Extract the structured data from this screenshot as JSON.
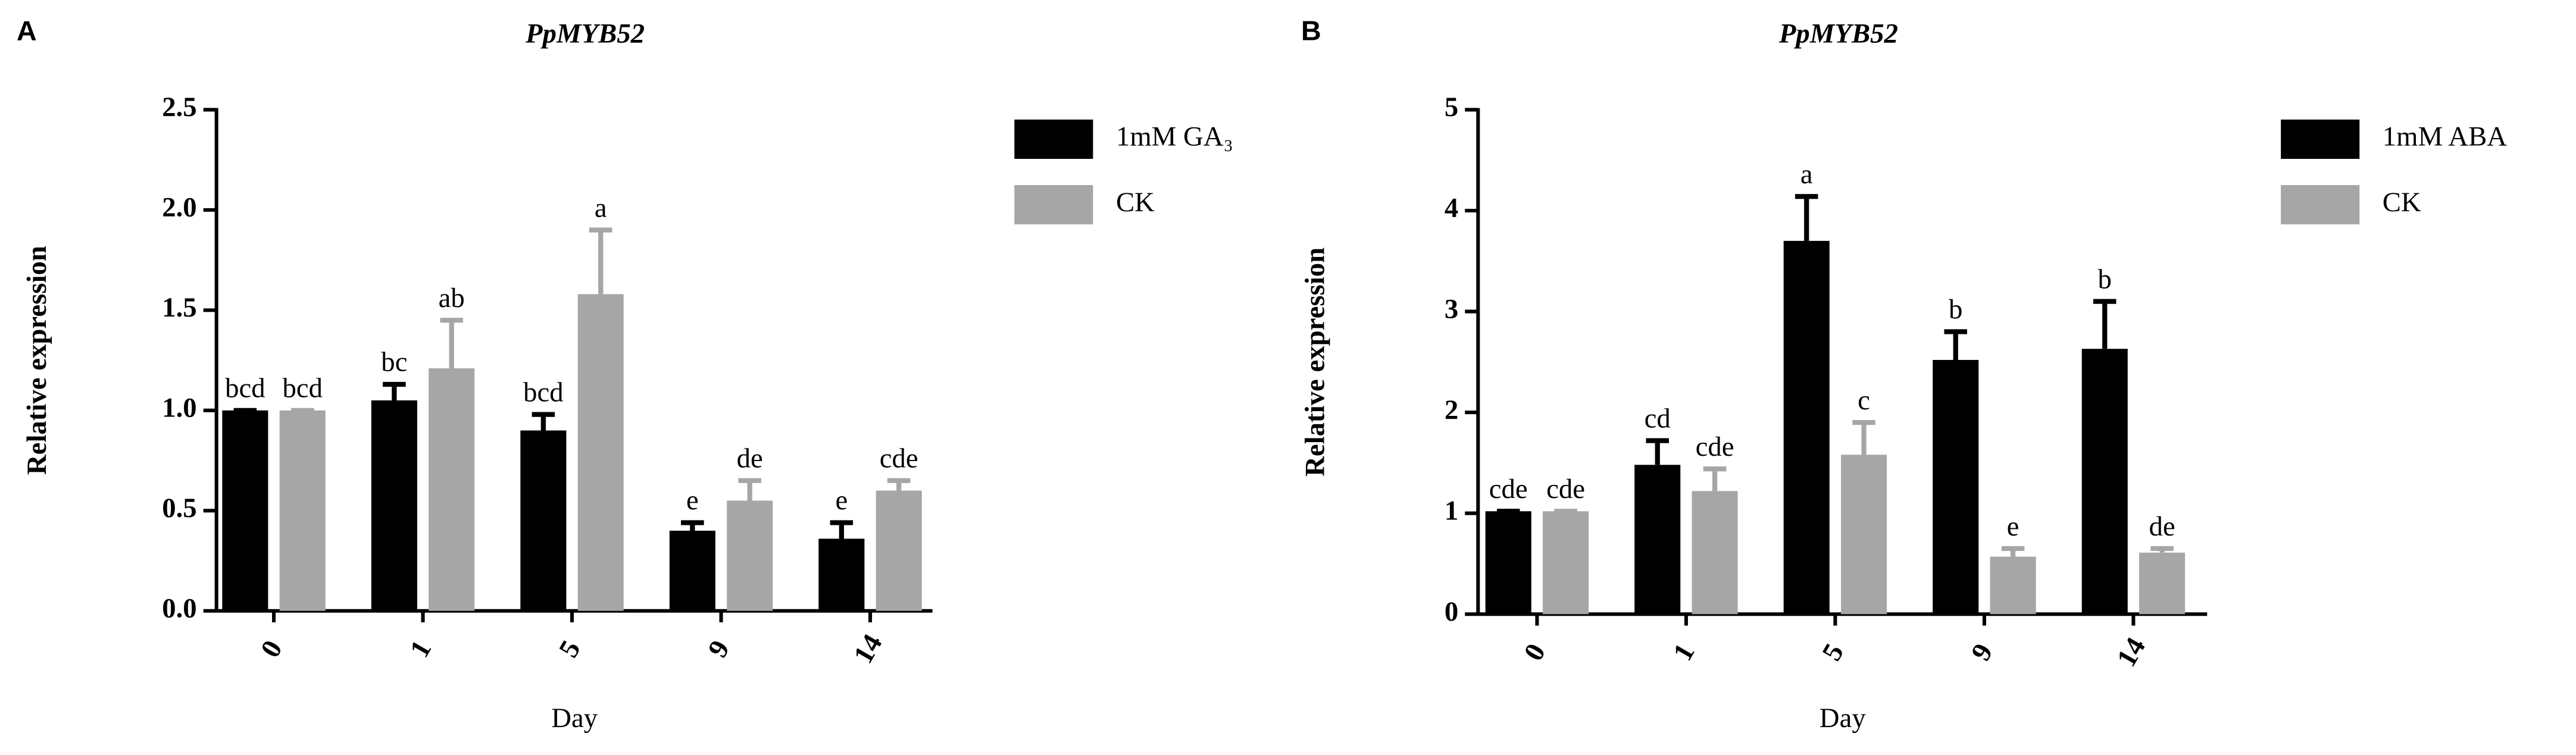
{
  "chart_data": [
    {
      "type": "bar",
      "panel": "A",
      "title": "PpMYB52",
      "x_label": "Day",
      "y_label": "Relative expression",
      "categories": [
        "0",
        "1",
        "5",
        "9",
        "14"
      ],
      "series": [
        {
          "name": "1mM GA₃",
          "color": "#000000",
          "values": [
            1.0,
            1.05,
            0.9,
            0.4,
            0.36
          ],
          "errors": [
            0,
            0.08,
            0.08,
            0.04,
            0.08
          ],
          "letters": [
            "bcd",
            "bc",
            "bcd",
            "e",
            "e"
          ]
        },
        {
          "name": "CK",
          "color": "#a6a6a6",
          "values": [
            1.0,
            1.21,
            1.58,
            0.55,
            0.6
          ],
          "errors": [
            0,
            0.24,
            0.32,
            0.1,
            0.05
          ],
          "letters": [
            "bcd",
            "ab",
            "a",
            "de",
            "cde"
          ]
        }
      ],
      "ylim": [
        0,
        2.5
      ],
      "yticks": [
        {
          "value": 0,
          "label": "0.0"
        },
        0.5,
        {
          "value": 1,
          "label": "1.0"
        },
        1.5,
        {
          "value": 2,
          "label": "2.0"
        },
        2.5
      ]
    },
    {
      "type": "bar",
      "panel": "B",
      "title": "PpMYB52",
      "x_label": "Day",
      "y_label": "Relative expression",
      "categories": [
        "0",
        "1",
        "5",
        "9",
        "14"
      ],
      "series": [
        {
          "name": "1mM ABA",
          "color": "#000000",
          "values": [
            1.02,
            1.48,
            3.7,
            2.52,
            2.63
          ],
          "errors": [
            0,
            0.24,
            0.44,
            0.28,
            0.47
          ],
          "letters": [
            "cde",
            "cd",
            "a",
            "b",
            "b"
          ]
        },
        {
          "name": "CK",
          "color": "#a6a6a6",
          "values": [
            1.02,
            1.22,
            1.58,
            0.57,
            0.61
          ],
          "errors": [
            0,
            0.22,
            0.32,
            0.08,
            0.04
          ],
          "letters": [
            "cde",
            "cde",
            "c",
            "e",
            "de"
          ]
        }
      ],
      "ylim": [
        0,
        5
      ],
      "yticks": [
        0,
        1,
        2,
        3,
        4,
        5
      ]
    }
  ]
}
